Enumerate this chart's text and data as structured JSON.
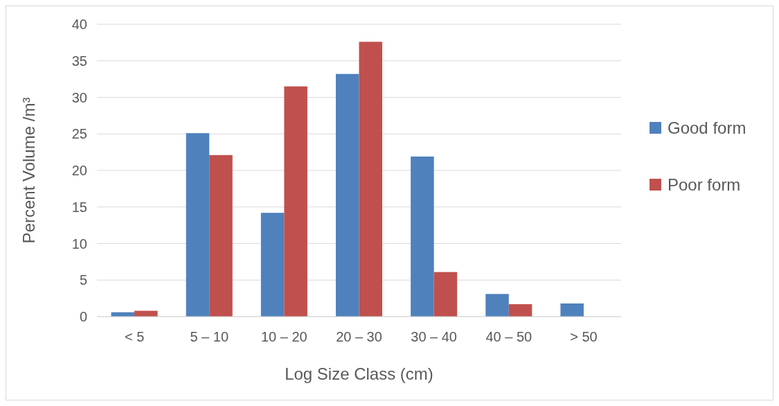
{
  "chart_data": {
    "type": "bar",
    "xlabel": "Log Size Class (cm)",
    "ylabel": "Percent Volume /m³",
    "categories": [
      "< 5",
      "5 – 10",
      "10 – 20",
      "20 – 30",
      "30 – 40",
      "40 – 50",
      "> 50"
    ],
    "series": [
      {
        "name": "Good form",
        "color": "#4f81bd",
        "values": [
          0.6,
          25.1,
          14.2,
          33.2,
          21.9,
          3.1,
          1.8
        ]
      },
      {
        "name": "Poor form",
        "color": "#c0504d",
        "values": [
          0.8,
          22.1,
          31.5,
          37.6,
          6.1,
          1.7,
          null
        ]
      }
    ],
    "ylim": [
      0,
      40
    ],
    "yticks": [
      0,
      5,
      10,
      15,
      20,
      25,
      30,
      35,
      40
    ],
    "grid": "y",
    "legend": "right"
  }
}
